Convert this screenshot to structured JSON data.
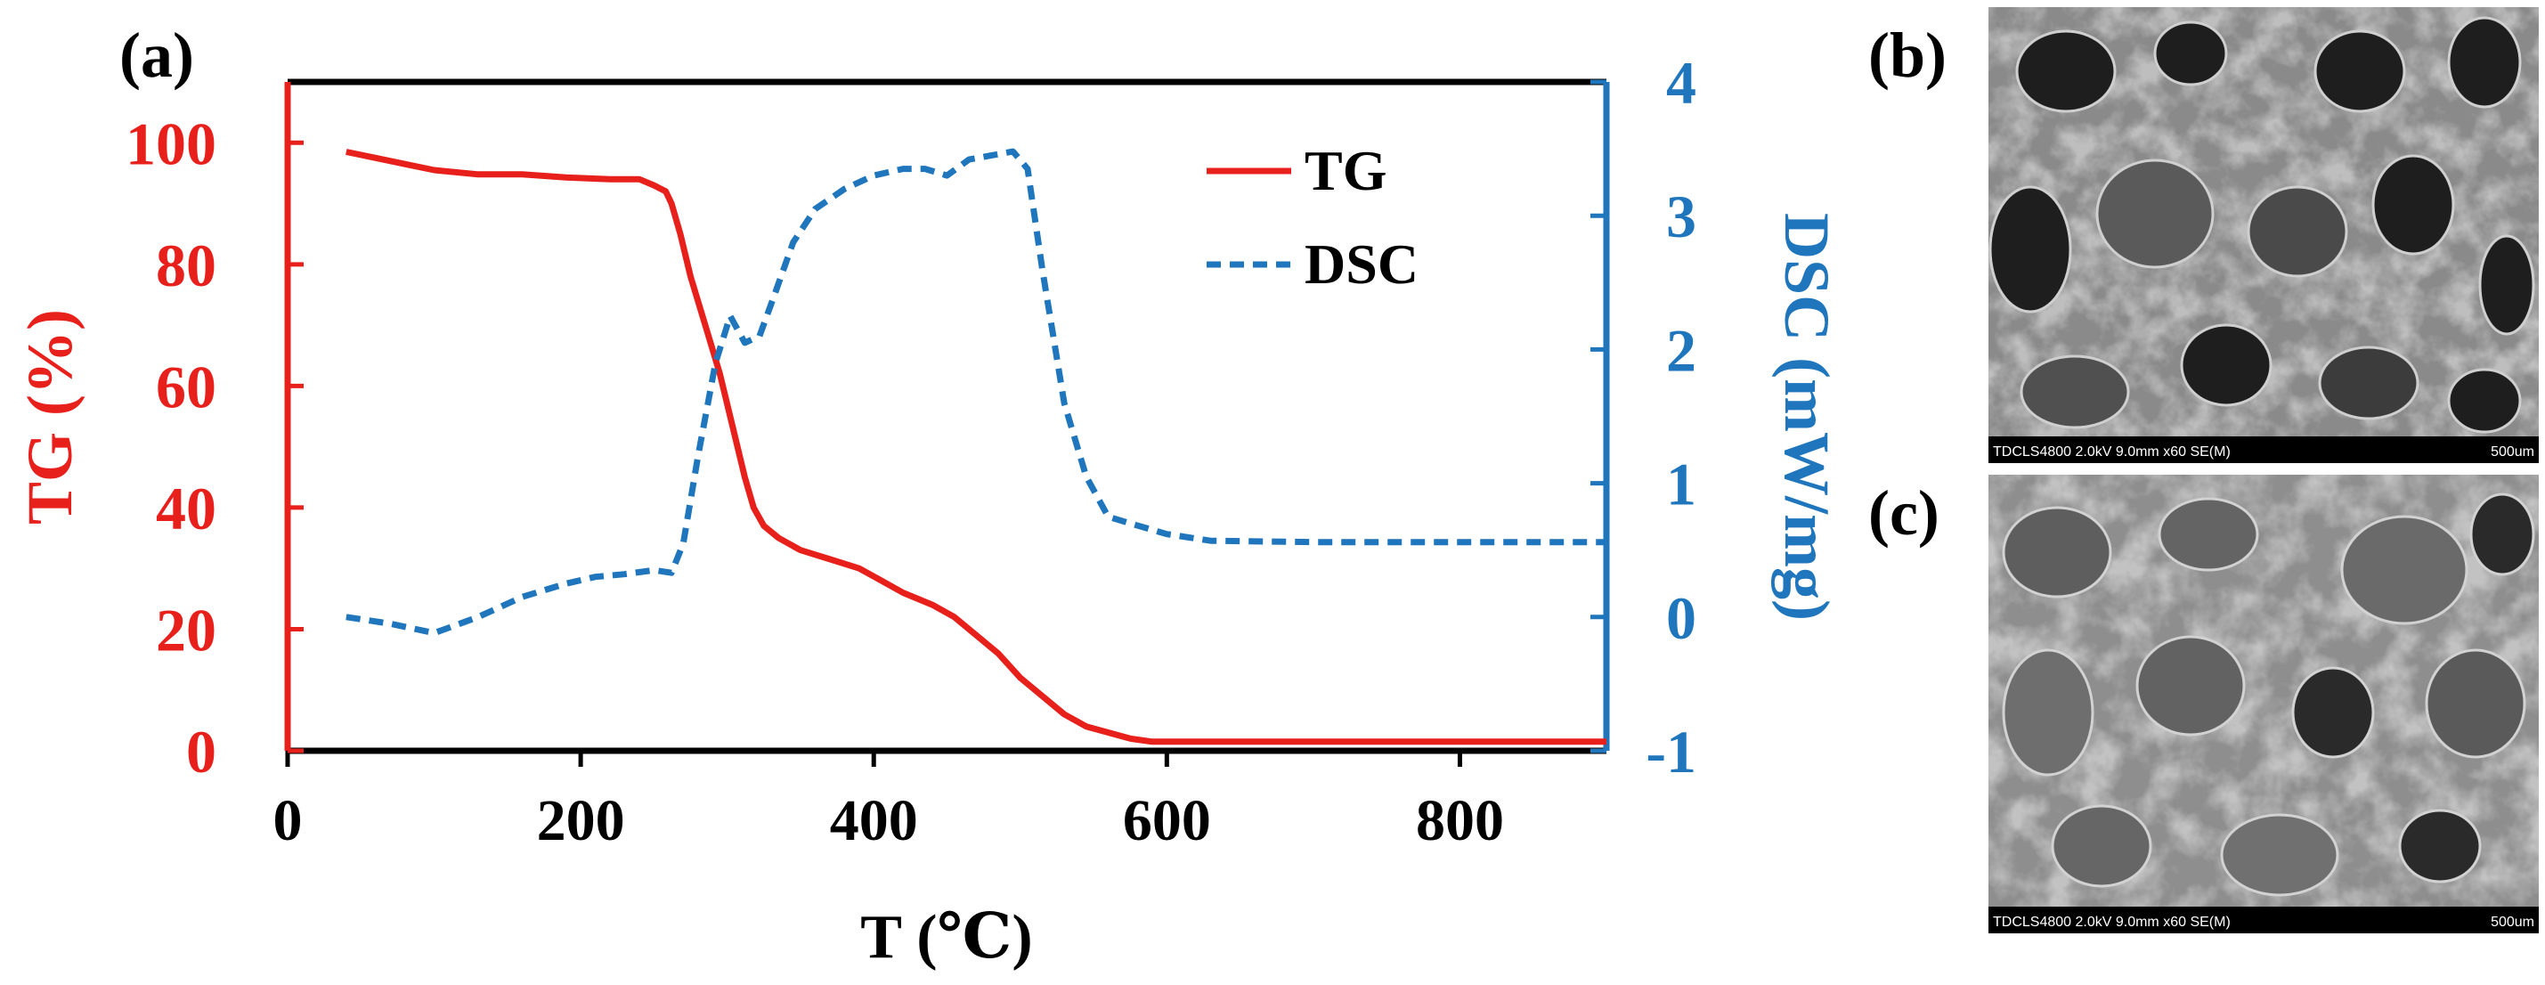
{
  "panel_labels": {
    "a": "(a)",
    "b": "(b)",
    "c": "(c)"
  },
  "colors": {
    "tg": "#e8201c",
    "dsc": "#1f76bd",
    "axis_x": "#000000",
    "sem_bg": "#8a8a8a"
  },
  "chart_data": {
    "type": "line",
    "title": "",
    "xlabel": "T (℃)",
    "ylabel_left": "TG (%)",
    "ylabel_right": "DSC (mW/mg)",
    "xlim": [
      0,
      900
    ],
    "ylim_left": [
      0,
      110
    ],
    "ylim_right": [
      -1,
      4
    ],
    "x_ticks": [
      "0",
      "200",
      "400",
      "600",
      "800"
    ],
    "x_tick_values": [
      0,
      200,
      400,
      600,
      800
    ],
    "y_left_ticks": [
      "0",
      "20",
      "40",
      "60",
      "80",
      "100"
    ],
    "y_left_tick_values": [
      0,
      20,
      40,
      60,
      80,
      100
    ],
    "y_right_ticks": [
      "-1",
      "0",
      "1",
      "2",
      "3",
      "4"
    ],
    "y_right_tick_values": [
      -1,
      0,
      1,
      2,
      3,
      4
    ],
    "legend": {
      "position": "top-right",
      "entries": [
        "TG",
        "DSC"
      ]
    },
    "series": [
      {
        "name": "TG",
        "axis": "left",
        "style": "solid",
        "x": [
          40,
          60,
          80,
          100,
          130,
          160,
          190,
          220,
          240,
          250,
          258,
          262,
          268,
          275,
          285,
          295,
          305,
          312,
          318,
          325,
          335,
          350,
          370,
          390,
          405,
          420,
          440,
          455,
          470,
          485,
          500,
          515,
          530,
          545,
          560,
          575,
          590,
          620,
          700,
          800,
          900
        ],
        "values": [
          98.5,
          97.5,
          96.5,
          95.5,
          94.8,
          94.8,
          94.3,
          94.0,
          94.0,
          93.0,
          92.0,
          90.0,
          85.0,
          78.0,
          70.0,
          62.0,
          52.0,
          45.0,
          40.0,
          37.0,
          35.0,
          33.0,
          31.5,
          30.0,
          28.0,
          26.0,
          24.0,
          22.0,
          19.0,
          16.0,
          12.0,
          9.0,
          6.0,
          4.0,
          3.0,
          2.0,
          1.5,
          1.5,
          1.5,
          1.5,
          1.5
        ]
      },
      {
        "name": "DSC",
        "axis": "right",
        "style": "dashed",
        "x": [
          40,
          70,
          100,
          130,
          160,
          190,
          210,
          230,
          250,
          262,
          270,
          280,
          292,
          302,
          312,
          322,
          332,
          345,
          360,
          380,
          400,
          420,
          435,
          450,
          465,
          480,
          495,
          505,
          515,
          530,
          545,
          560,
          575,
          600,
          630,
          700,
          800,
          900
        ],
        "values": [
          0.0,
          -0.05,
          -0.12,
          0.0,
          0.15,
          0.25,
          0.3,
          0.32,
          0.35,
          0.33,
          0.55,
          1.2,
          1.9,
          2.25,
          2.05,
          2.1,
          2.4,
          2.8,
          3.05,
          3.2,
          3.3,
          3.35,
          3.35,
          3.3,
          3.42,
          3.45,
          3.48,
          3.35,
          2.6,
          1.6,
          1.05,
          0.75,
          0.7,
          0.62,
          0.57,
          0.56,
          0.56,
          0.56
        ]
      }
    ]
  },
  "sem": {
    "b": {
      "caption_left": "TDCLS4800 2.0kV 9.0mm x60 SE(M)",
      "caption_right": "500um"
    },
    "c": {
      "caption_left": "TDCLS4800 2.0kV 9.0mm x60 SE(M)",
      "caption_right": "500um"
    }
  }
}
